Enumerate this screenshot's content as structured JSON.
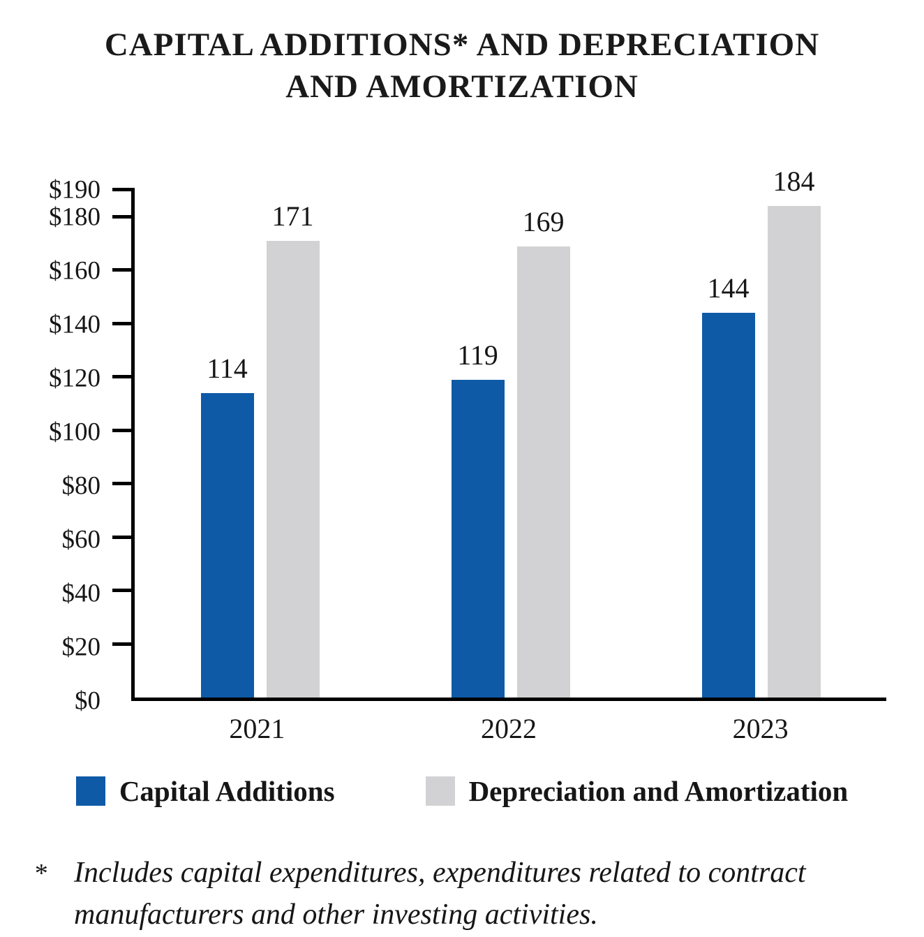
{
  "chart_data": {
    "type": "bar",
    "title": "CAPITAL ADDITIONS* AND DEPRECIATION AND AMORTIZATION",
    "title_lines": {
      "line1": "CAPITAL ADDITIONS* AND DEPRECIATION",
      "line2": "AND AMORTIZATION"
    },
    "categories": [
      "2021",
      "2022",
      "2023"
    ],
    "series": [
      {
        "name": "Capital Additions",
        "color": "#0e5aa7",
        "values": [
          114,
          119,
          144
        ]
      },
      {
        "name": "Depreciation and Amortization",
        "color": "#d2d2d4",
        "values": [
          171,
          169,
          184
        ]
      }
    ],
    "ylim": [
      0,
      190
    ],
    "yticks": [
      190,
      180,
      160,
      140,
      120,
      100,
      80,
      60,
      40,
      20,
      0
    ],
    "ytick_prefix": "$",
    "grid": false,
    "legend_position": "bottom",
    "bar_value_labels": true
  },
  "footnote": {
    "marker": "*",
    "text": "Includes capital expenditures, expenditures related to contract manufacturers and other investing activities."
  }
}
